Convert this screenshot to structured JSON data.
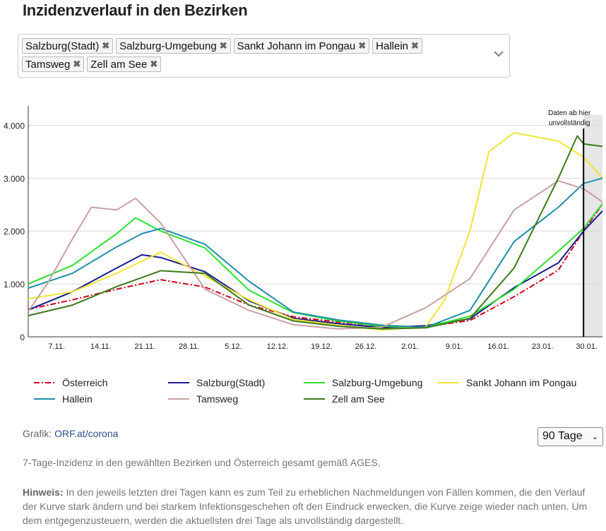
{
  "title": "Inzidenzverlauf in den Bezirken",
  "chips": [
    {
      "label": "Salzburg(Stadt)"
    },
    {
      "label": "Salzburg-Umgebung"
    },
    {
      "label": "Sankt Johann im Pongau"
    },
    {
      "label": "Hallein"
    },
    {
      "label": "Tamsweg"
    },
    {
      "label": "Zell am See"
    }
  ],
  "chip_remove_glyph": "✖",
  "footer": {
    "grafik_label": "Grafik: ",
    "grafik_link": "ORF.at/corona",
    "range_value": "90 Tage",
    "description": "7-Tage-Inzidenz in den gewählten Bezirken und Österreich gesamt gemäß AGES.",
    "note_label": "Hinweis:",
    "note_text": " In den jeweils letzten drei Tagen kann es zum Teil zu erheblichen Nachmeldungen von Fällen kommen, die den Verlauf der Kurve stark ändern und bei starkem Infektionsgeschehen oft den Eindruck erwecken, die Kurve zeige wieder nach unten. Um dem entgegenzusteuern, werden die aktuellsten drei Tage als unvollständig dargestellt."
  },
  "chart_data": {
    "type": "line",
    "x_ticks": [
      "7.11.",
      "14.11.",
      "21.11.",
      "28.11.",
      "5.12.",
      "12.12.",
      "19.12.",
      "26.12.",
      "2.01.",
      "9.01.",
      "16.01.",
      "23.01.",
      "30.01."
    ],
    "y_ticks": [
      "0",
      "1.000",
      "2.000",
      "3.000",
      "4.000"
    ],
    "ylim": [
      0,
      4500
    ],
    "annotation": "Daten ab hier unvollständig",
    "shade_from_day": 88,
    "series": [
      {
        "name": "Österreich",
        "color": "#d0021b",
        "dashed": true,
        "x": [
          0,
          7,
          14,
          21,
          28,
          35,
          42,
          49,
          56,
          63,
          70,
          77,
          84,
          88,
          91
        ],
        "y": [
          520,
          700,
          900,
          1080,
          940,
          600,
          380,
          280,
          200,
          190,
          310,
          760,
          1260,
          2000,
          2510
        ]
      },
      {
        "name": "Salzburg(Stadt)",
        "color": "#1a1a8c",
        "dashed": false,
        "x": [
          0,
          7,
          14,
          18,
          21,
          28,
          35,
          42,
          49,
          56,
          63,
          70,
          77,
          84,
          88,
          91
        ],
        "y": [
          510,
          850,
          1300,
          1550,
          1500,
          1230,
          680,
          350,
          250,
          175,
          210,
          340,
          930,
          1400,
          2000,
          2380
        ]
      },
      {
        "name": "Salzburg-Umgebung",
        "color": "#2ee02e",
        "dashed": false,
        "x": [
          0,
          7,
          14,
          17,
          21,
          28,
          35,
          42,
          49,
          56,
          63,
          70,
          77,
          84,
          88,
          91
        ],
        "y": [
          1000,
          1350,
          1950,
          2250,
          2000,
          1680,
          880,
          460,
          300,
          200,
          180,
          390,
          900,
          1620,
          2050,
          2520
        ]
      },
      {
        "name": "Sankt Johann im Pongau",
        "color": "#f2e534",
        "dashed": false,
        "x": [
          0,
          7,
          14,
          21,
          28,
          35,
          42,
          49,
          56,
          63,
          66,
          70,
          73,
          77,
          84,
          88,
          91
        ],
        "y": [
          720,
          850,
          1200,
          1600,
          1150,
          700,
          330,
          220,
          130,
          190,
          700,
          2000,
          3500,
          3860,
          3700,
          3400,
          3000
        ]
      },
      {
        "name": "Hallein",
        "color": "#1f8eaa",
        "dashed": false,
        "x": [
          0,
          7,
          14,
          18,
          21,
          28,
          35,
          42,
          49,
          56,
          63,
          70,
          77,
          84,
          88,
          91
        ],
        "y": [
          920,
          1200,
          1700,
          1950,
          2050,
          1750,
          1050,
          470,
          320,
          220,
          180,
          500,
          1800,
          2450,
          2900,
          3000
        ]
      },
      {
        "name": "Tamsweg",
        "color": "#c9a0a0",
        "dashed": false,
        "x": [
          0,
          3,
          7,
          10,
          14,
          17,
          21,
          28,
          35,
          42,
          49,
          56,
          63,
          70,
          77,
          84,
          88,
          91
        ],
        "y": [
          480,
          1000,
          1850,
          2450,
          2400,
          2620,
          2150,
          900,
          500,
          230,
          150,
          180,
          550,
          1100,
          2400,
          2950,
          2800,
          2550
        ]
      },
      {
        "name": "Zell am See",
        "color": "#3d7a1a",
        "dashed": false,
        "x": [
          0,
          7,
          14,
          21,
          28,
          35,
          42,
          49,
          56,
          63,
          70,
          77,
          84,
          87,
          88,
          91
        ],
        "y": [
          400,
          600,
          950,
          1250,
          1200,
          600,
          300,
          200,
          150,
          170,
          350,
          1300,
          3000,
          3800,
          3650,
          3600
        ]
      }
    ]
  }
}
